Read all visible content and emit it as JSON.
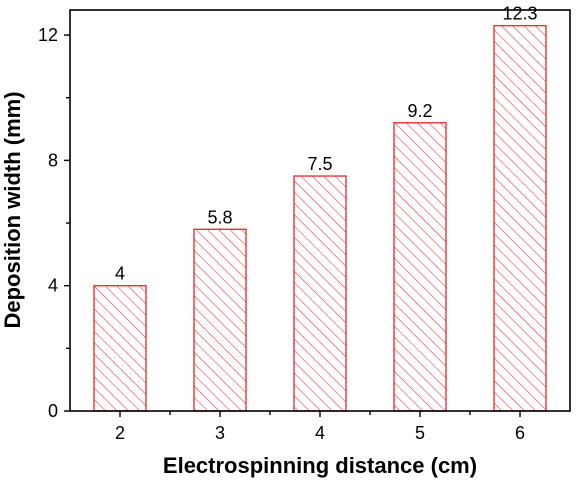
{
  "chart_data": {
    "type": "bar",
    "categories": [
      "2",
      "3",
      "4",
      "5",
      "6"
    ],
    "values": [
      4,
      5.8,
      7.5,
      9.2,
      12.3
    ],
    "data_labels": [
      "4",
      "5.8",
      "7.5",
      "9.2",
      "12.3"
    ],
    "xlabel": "Electrospinning distance (cm)",
    "ylabel": "Deposition width (mm)",
    "ylim": [
      0,
      12.8
    ],
    "yticks": [
      "0",
      "4",
      "8",
      "12"
    ],
    "grid": false,
    "bar_style": "hatched",
    "colors": {
      "bar_edge": "#e8323a",
      "bar_hatch": "#e8323a",
      "axes": "#000000"
    }
  }
}
